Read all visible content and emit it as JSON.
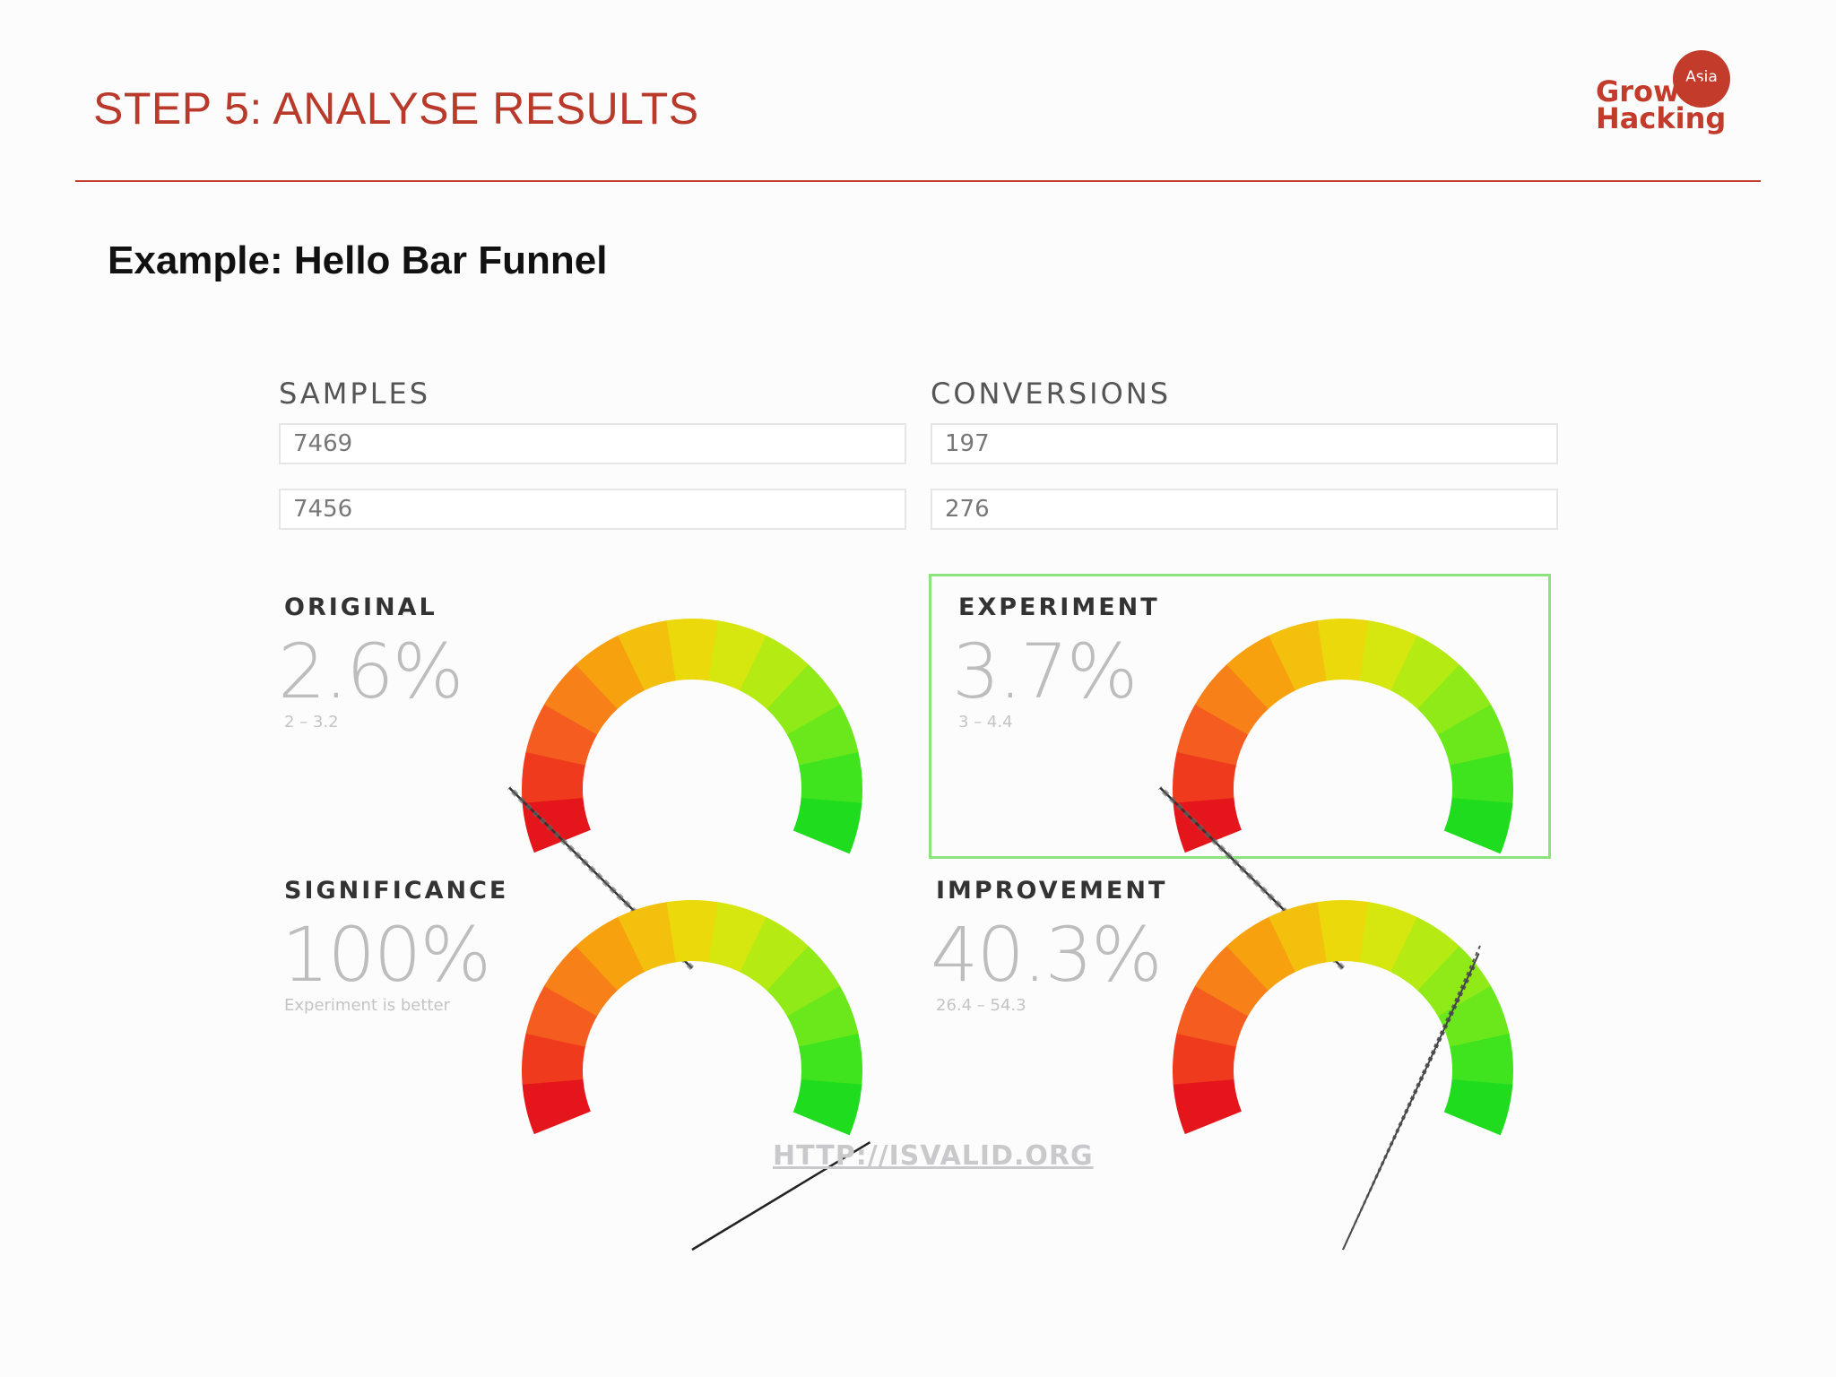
{
  "slide": {
    "title": "STEP 5: ANALYSE RESULTS",
    "subtitle": "Example: Hello Bar Funnel",
    "accent_color": "#c33b2a"
  },
  "logo": {
    "line1": "Growth",
    "line2": "Hacking",
    "badge": "Asia"
  },
  "calculator": {
    "samples_label": "SAMPLES",
    "conversions_label": "CONVERSIONS",
    "samples": [
      "7469",
      "7456"
    ],
    "conversions": [
      "197",
      "276"
    ],
    "panels": {
      "original": {
        "label": "ORIGINAL",
        "value": "2.6%",
        "range": "2 – 3.2",
        "needle_fraction": 0.1
      },
      "experiment": {
        "label": "EXPERIMENT",
        "value": "3.7%",
        "range": "3 – 4.4",
        "needle_fraction": 0.1,
        "highlight_color": "#8ce27d"
      },
      "significance": {
        "label": "SIGNIFICANCE",
        "value": "100%",
        "range": "Experiment is better",
        "needle_fraction": 1.0
      },
      "improvement": {
        "label": "IMPROVEMENT",
        "value": "40.3%",
        "range": "26.4 – 54.3",
        "needle_fraction": 0.72
      }
    },
    "footer_link": "HTTP://ISVALID.ORG"
  },
  "gauge_colors": [
    "#e5161b",
    "#ef3a1e",
    "#f45d1f",
    "#f78118",
    "#f7a10f",
    "#f2c00d",
    "#ecd90c",
    "#d6e60f",
    "#b5ea13",
    "#8fea17",
    "#6ae81b",
    "#3fe31e",
    "#1fdc1f"
  ]
}
